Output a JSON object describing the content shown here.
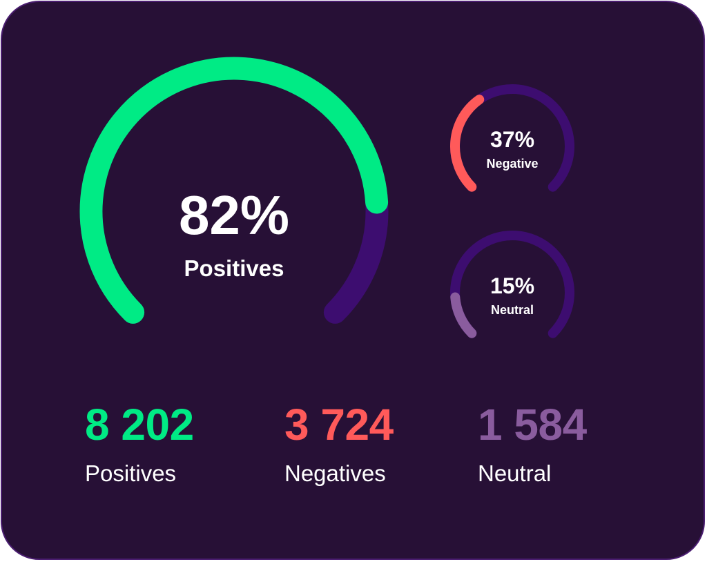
{
  "colors": {
    "background": "#271036",
    "border": "#4a1d70",
    "track": "#3d0d70",
    "positive": "#00eb85",
    "negative": "#ff5a5a",
    "neutral": "#8a5c9e",
    "text": "#ffffff"
  },
  "chart_data": [
    {
      "type": "gauge",
      "series": "positives",
      "value_percent": 82,
      "value_label": "82%",
      "label": "Positives"
    },
    {
      "type": "gauge",
      "series": "negatives",
      "value_percent": 37,
      "value_label": "37%",
      "label": "Negative"
    },
    {
      "type": "gauge",
      "series": "neutral",
      "value_percent": 15,
      "value_label": "15%",
      "label": "Neutral"
    }
  ],
  "stats": [
    {
      "value": "8 202",
      "label": "Positives"
    },
    {
      "value": "3 724",
      "label": "Negatives"
    },
    {
      "value": "1 584",
      "label": "Neutral"
    }
  ]
}
